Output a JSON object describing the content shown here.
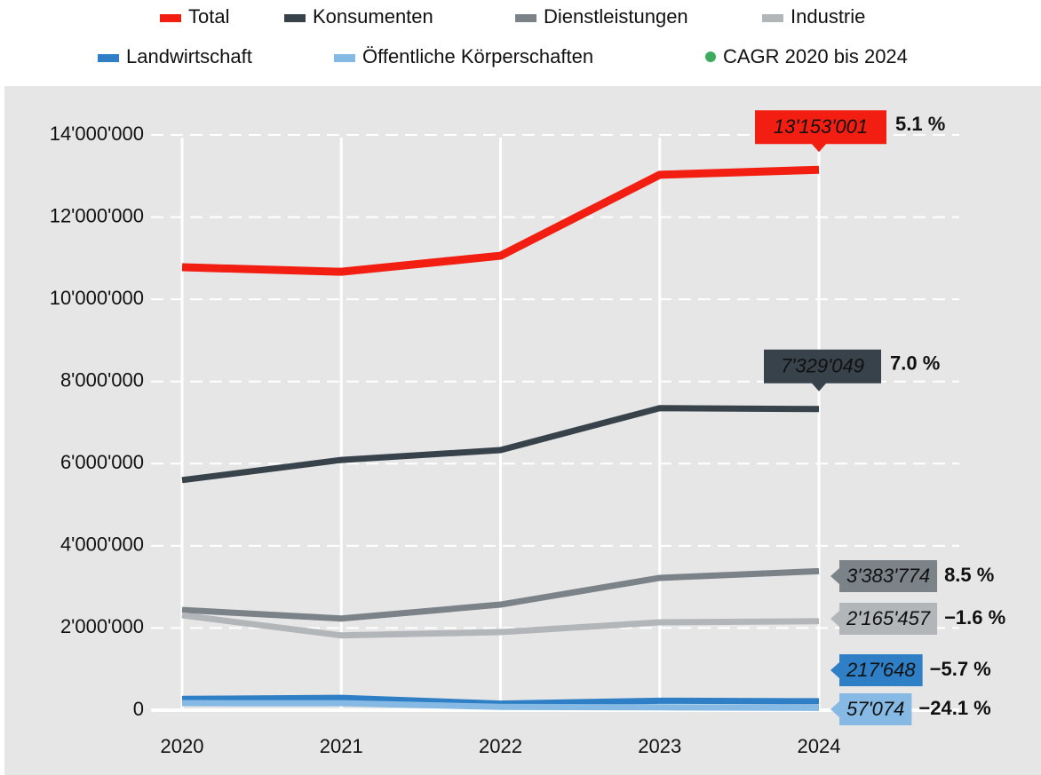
{
  "chart_data": {
    "type": "line",
    "x": [
      2020,
      2021,
      2022,
      2023,
      2024
    ],
    "xlim": [
      2020,
      2024
    ],
    "ylim": [
      0,
      14000000
    ],
    "yticks": [
      0,
      {
        "value": 2000000,
        "label": "2'000'000"
      },
      {
        "value": 4000000,
        "label": "4'000'000"
      },
      {
        "value": 6000000,
        "label": "6'000'000"
      },
      {
        "value": 8000000,
        "label": "8'000'000"
      },
      {
        "value": 10000000,
        "label": "10'000'000"
      },
      {
        "value": 12000000,
        "label": "12'000'000"
      },
      {
        "value": 14000000,
        "label": "14'000'000"
      }
    ],
    "grid": true,
    "series": [
      {
        "name": "Total",
        "color": "#f21e12",
        "values": [
          10780000,
          10670000,
          11060000,
          13030000,
          13153001
        ],
        "value_labels": [
          null,
          null,
          null,
          null,
          "13'153'001"
        ],
        "cagr": "5.1 %"
      },
      {
        "name": "Konsumenten",
        "color": "#37424a",
        "values": [
          5600000,
          6090000,
          6330000,
          7350000,
          7329049
        ],
        "value_labels": [
          null,
          null,
          null,
          null,
          "7'329'049"
        ],
        "cagr": "7.0 %"
      },
      {
        "name": "Dienstleistungen",
        "color": "#7b8288",
        "values": [
          2440000,
          2230000,
          2570000,
          3220000,
          3383774
        ],
        "value_labels": [
          null,
          null,
          null,
          null,
          "3'383'774"
        ],
        "cagr": "8.5 %"
      },
      {
        "name": "Industrie",
        "color": "#b3b6b9",
        "values": [
          2310000,
          1820000,
          1900000,
          2140000,
          2165457
        ],
        "value_labels": [
          null,
          null,
          null,
          null,
          "2'165'457"
        ],
        "cagr": "−1.6 %"
      },
      {
        "name": "Landwirtschaft",
        "color": "#2e7fc6",
        "values": [
          275000,
          300000,
          160000,
          230000,
          217648
        ],
        "value_labels": [
          null,
          null,
          null,
          null,
          "217'648"
        ],
        "cagr": "−5.7 %"
      },
      {
        "name": "Öffentliche Körperschaften",
        "color": "#86b9e3",
        "values": [
          172000,
          170000,
          80000,
          70000,
          57074
        ],
        "value_labels": [
          null,
          null,
          null,
          null,
          "57'074"
        ],
        "cagr": "−24.1 %"
      }
    ],
    "cagr_legend": {
      "name": "CAGR 2020 bis 2024",
      "color": "#3dab5f"
    }
  }
}
